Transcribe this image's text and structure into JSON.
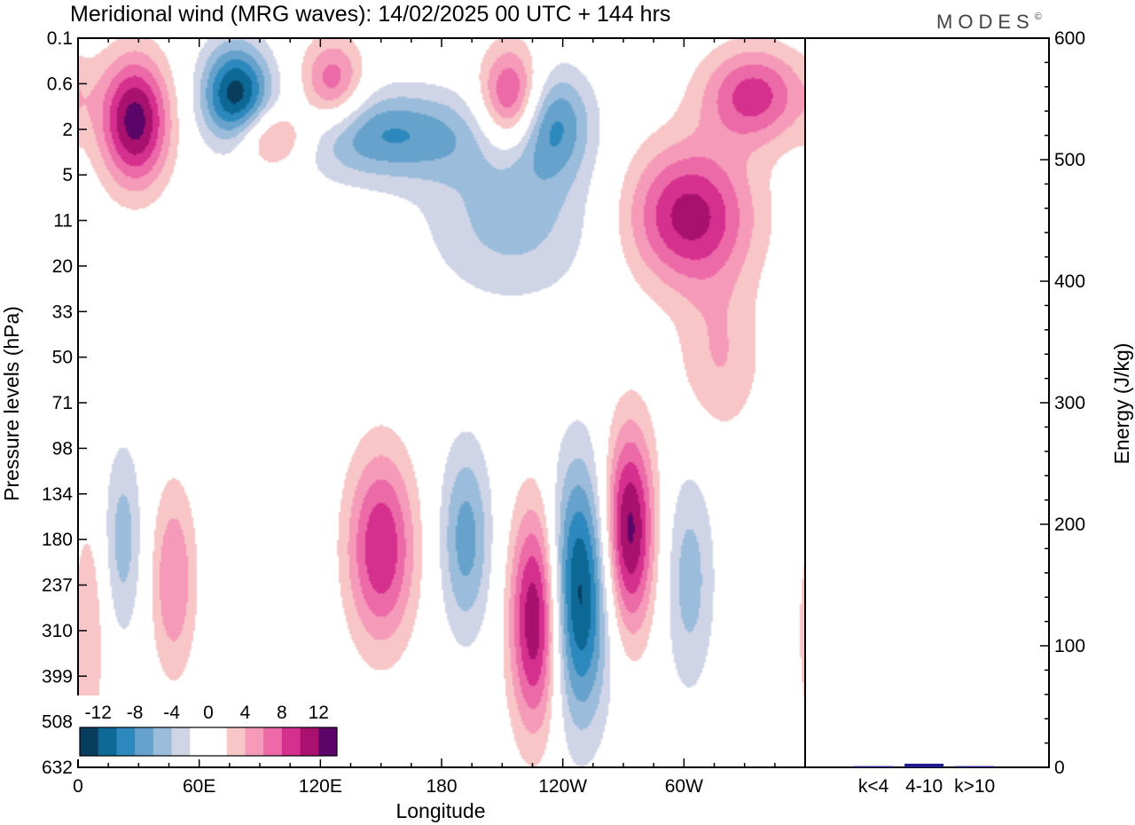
{
  "title": "Meridional wind (MRG waves):  14/02/2025  00 UTC  + 144 hrs",
  "brand": "MODES",
  "brand_mark": "©",
  "chart_data": [
    {
      "type": "heatmap",
      "variable": "Meridional wind (MRG waves)",
      "xlabel": "Longitude",
      "ylabel": "Pressure levels (hPa)",
      "x_ticks": [
        "0",
        "60E",
        "120E",
        "180",
        "120W",
        "60W"
      ],
      "x_tick_degrees": [
        0,
        60,
        120,
        180,
        240,
        300
      ],
      "x_range": [
        0,
        360
      ],
      "y_levels": [
        "0.1",
        "0.6",
        "2",
        "5",
        "11",
        "20",
        "33",
        "50",
        "71",
        "98",
        "134",
        "180",
        "237",
        "310",
        "399",
        "508",
        "632"
      ],
      "colorbar": {
        "labels": [
          "-12",
          "-8",
          "-4",
          "0",
          "4",
          "8",
          "12"
        ],
        "bounds": [
          -14,
          -12,
          -10,
          -8,
          -6,
          -4,
          -2,
          0,
          2,
          4,
          6,
          8,
          10,
          12,
          14
        ],
        "colors": [
          "#083d5e",
          "#0d6896",
          "#2c88bd",
          "#66a2cb",
          "#9bbcda",
          "#cfd4e7",
          "#ffffff",
          "#ffffff",
          "#f8c6c6",
          "#f59ab8",
          "#ec6aa8",
          "#d6308f",
          "#a8126e",
          "#5c0568"
        ]
      },
      "features": [
        {
          "lon": 78,
          "lev": 0.8,
          "value": -13,
          "lon_width": 24,
          "lev_depth": 1.6
        },
        {
          "lon": 28,
          "lev": 1.6,
          "value": 13,
          "lon_width": 24,
          "lev_depth": 2.0
        },
        {
          "lon": 126,
          "lev": 0.6,
          "value": 8,
          "lon_width": 22,
          "lev_depth": 1.4
        },
        {
          "lon": 215,
          "lev": 0.9,
          "value": 11,
          "lon_width": 22,
          "lev_depth": 1.6
        },
        {
          "lon": 335,
          "lev": 0.8,
          "value": 9,
          "lon_width": 36,
          "lev_depth": 1.5
        },
        {
          "lon": 234,
          "lev": 1.6,
          "value": -8,
          "lon_width": 28,
          "lev_depth": 1.7
        },
        {
          "lon": 152,
          "lev": 2.2,
          "value": -8,
          "lon_width": 70,
          "lev_depth": 1.4
        },
        {
          "lon": 95,
          "lev": 2.3,
          "value": 8,
          "lon_width": 28,
          "lev_depth": 1.0
        },
        {
          "lon": 303,
          "lev": 10,
          "value": 11,
          "lon_width": 44,
          "lev_depth": 2.2
        },
        {
          "lon": 215,
          "lev": 10,
          "value": -5,
          "lon_width": 60,
          "lev_depth": 2.6
        },
        {
          "lon": 150,
          "lev": 190,
          "value": 10,
          "lon_width": 24,
          "lev_depth": 3.0
        },
        {
          "lon": 192,
          "lev": 180,
          "value": -7,
          "lon_width": 18,
          "lev_depth": 3.0
        },
        {
          "lon": 227,
          "lev": 290,
          "value": 13,
          "lon_width": 18,
          "lev_depth": 3.5
        },
        {
          "lon": 248,
          "lev": 250,
          "value": -13,
          "lon_width": 22,
          "lev_depth": 4.0
        },
        {
          "lon": 273,
          "lev": 170,
          "value": 13,
          "lon_width": 18,
          "lev_depth": 3.2
        },
        {
          "lon": 303,
          "lev": 230,
          "value": -5,
          "lon_width": 18,
          "lev_depth": 3.5
        },
        {
          "lon": 47,
          "lev": 230,
          "value": 6,
          "lon_width": 16,
          "lev_depth": 3.0
        },
        {
          "lon": 22,
          "lev": 180,
          "value": -5,
          "lon_width": 14,
          "lev_depth": 3.0
        },
        {
          "lon": 5,
          "lev": 310,
          "value": 4,
          "lon_width": 12,
          "lev_depth": 3.5
        },
        {
          "lon": 318,
          "lev": 50,
          "value": 4,
          "lon_width": 30,
          "lev_depth": 2.5
        }
      ]
    },
    {
      "type": "bar",
      "ylabel": "Energy (J/kg)",
      "categories": [
        "k<4",
        "4-10",
        "k>10"
      ],
      "values": [
        1,
        3,
        1
      ],
      "ylim": [
        0,
        600
      ],
      "y_ticks": [
        0,
        100,
        200,
        300,
        400,
        500,
        600
      ],
      "bar_color": "#1c1c8c"
    }
  ]
}
